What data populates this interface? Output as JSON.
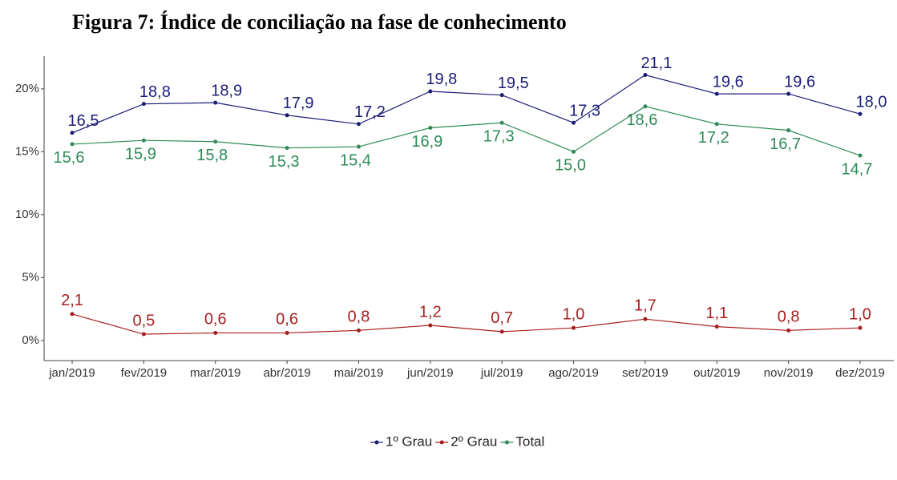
{
  "chart_data": {
    "type": "line",
    "title": "Figura 7: Índice de conciliação na fase de conhecimento",
    "categories": [
      "jan/2019",
      "fev/2019",
      "mar/2019",
      "abr/2019",
      "mai/2019",
      "jun/2019",
      "jul/2019",
      "ago/2019",
      "set/2019",
      "out/2019",
      "nov/2019",
      "dez/2019"
    ],
    "series": [
      {
        "name": "1º Grau",
        "color": "#1c1c78",
        "values": [
          16.5,
          18.8,
          18.9,
          17.9,
          17.2,
          19.8,
          19.5,
          17.3,
          21.1,
          19.6,
          19.6,
          18.0
        ],
        "value_labels": [
          "16,5",
          "18,8",
          "18,9",
          "17,9",
          "17,2",
          "19,8",
          "19,5",
          "17,3",
          "21,1",
          "19,6",
          "19,6",
          "18,0"
        ]
      },
      {
        "name": "2º Grau",
        "color": "#a81e1e",
        "values": [
          2.1,
          0.5,
          0.6,
          0.6,
          0.8,
          1.2,
          0.7,
          1.0,
          1.7,
          1.1,
          0.8,
          1.0
        ],
        "value_labels": [
          "2,1",
          "0,5",
          "0,6",
          "0,6",
          "0,8",
          "1,2",
          "0,7",
          "1,0",
          "1,7",
          "1,1",
          "0,8",
          "1,0"
        ]
      },
      {
        "name": "Total",
        "color": "#2e8b57",
        "values": [
          15.6,
          15.9,
          15.8,
          15.3,
          15.4,
          16.9,
          17.3,
          15.0,
          18.6,
          17.2,
          16.7,
          14.7
        ],
        "value_labels": [
          "15,6",
          "15,9",
          "15,8",
          "15,3",
          "15,4",
          "16,9",
          "17,3",
          "15,0",
          "18,6",
          "17,2",
          "16,7",
          "14,7"
        ]
      }
    ],
    "ylim": [
      -1.6,
      22.6
    ],
    "yticks": [
      {
        "value": 0,
        "label": "0%"
      },
      {
        "value": 5,
        "label": "5%"
      },
      {
        "value": 10,
        "label": "10%"
      },
      {
        "value": 15,
        "label": "15%"
      },
      {
        "value": 20,
        "label": "20%"
      }
    ],
    "legend": "bottom"
  }
}
